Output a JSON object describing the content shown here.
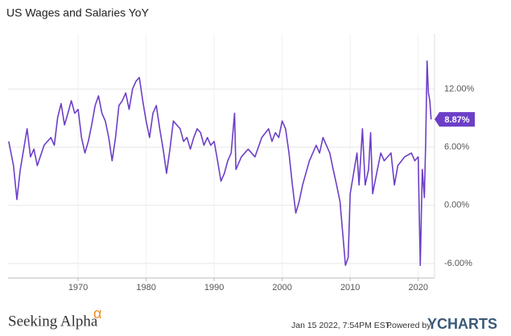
{
  "chart_data": {
    "type": "line",
    "title": "US Wages and Salaries YoY",
    "x": [
      1959.8,
      1960.5,
      1961,
      1961.5,
      1962,
      1962.5,
      1963,
      1963.5,
      1964,
      1965,
      1966,
      1966.5,
      1967,
      1967.5,
      1968,
      1968.5,
      1969,
      1969.5,
      1970,
      1970.5,
      1971,
      1971.5,
      1972,
      1972.5,
      1973,
      1973.5,
      1974,
      1974.5,
      1975,
      1975.5,
      1976,
      1976.5,
      1977,
      1977.5,
      1978,
      1978.5,
      1979,
      1979.5,
      1980,
      1980.5,
      1981,
      1981.5,
      1982,
      1982.5,
      1983,
      1983.5,
      1984,
      1984.5,
      1985,
      1985.5,
      1986,
      1986.5,
      1987,
      1987.5,
      1988,
      1988.5,
      1989,
      1989.5,
      1990,
      1990.5,
      1991,
      1991.5,
      1992,
      1992.5,
      1993,
      1993.2,
      1994,
      1995,
      1996,
      1997,
      1998,
      1998.5,
      1999,
      1999.5,
      2000,
      2000.5,
      2001,
      2001.5,
      2002,
      2002.5,
      2003,
      2004,
      2005,
      2005.5,
      2006,
      2006.5,
      2007,
      2007.5,
      2008,
      2008.5,
      2009,
      2009.3,
      2009.7,
      2010,
      2010.5,
      2011,
      2011.3,
      2011.8,
      2012.2,
      2012.7,
      2013,
      2013.3,
      2014,
      2014.5,
      2015,
      2016,
      2016.5,
      2017,
      2018,
      2019,
      2019.5,
      2020,
      2020.3,
      2020.6,
      2020.9,
      2021.1,
      2021.3,
      2021.5,
      2021.7,
      2021.9
    ],
    "series": [
      {
        "name": "US Wages and Salaries YoY",
        "color": "#6c3fc7",
        "values": [
          6.6,
          4.1,
          0.6,
          3.7,
          5.8,
          7.9,
          5.0,
          5.8,
          4.1,
          6.2,
          7.0,
          6.2,
          9.1,
          10.5,
          8.3,
          9.5,
          10.8,
          9.5,
          9.9,
          7.0,
          5.4,
          6.6,
          8.3,
          10.3,
          11.3,
          9.5,
          8.7,
          7.0,
          4.6,
          7.0,
          10.3,
          10.8,
          11.6,
          9.9,
          12.0,
          12.8,
          13.2,
          10.8,
          8.7,
          7.0,
          9.5,
          10.3,
          7.9,
          5.8,
          3.3,
          5.8,
          8.7,
          8.3,
          7.9,
          6.6,
          7.0,
          5.8,
          7.0,
          7.9,
          7.5,
          6.2,
          7.0,
          6.2,
          6.6,
          4.6,
          2.5,
          3.3,
          4.6,
          5.4,
          9.5,
          3.7,
          5.0,
          5.8,
          5.0,
          7.0,
          7.9,
          6.6,
          7.5,
          7.0,
          8.7,
          7.9,
          5.4,
          2.1,
          -0.8,
          0.4,
          2.1,
          4.6,
          6.2,
          5.4,
          7.0,
          6.2,
          5.4,
          3.7,
          2.1,
          0.4,
          -3.7,
          -6.2,
          -5.4,
          1.2,
          3.3,
          5.4,
          2.1,
          7.9,
          2.1,
          3.7,
          7.5,
          1.2,
          3.7,
          5.4,
          4.6,
          5.4,
          2.1,
          4.1,
          5.0,
          5.4,
          4.6,
          5.0,
          -6.2,
          3.7,
          0.8,
          6.6,
          14.9,
          11.6,
          10.8,
          8.87
        ]
      }
    ],
    "annotation": {
      "value": 8.87,
      "label": "8.87%"
    },
    "xlim": [
      1959.7,
      2022.4
    ],
    "xticks": [
      1970,
      1980,
      1990,
      2000,
      2010,
      2020
    ],
    "ylim": [
      -7.5,
      17.7
    ],
    "yticks": [
      {
        "value": -6,
        "label": "-6.00%"
      },
      {
        "value": 0,
        "label": "0.00%"
      },
      {
        "value": 6,
        "label": "6.00%"
      },
      {
        "value": 12,
        "label": "12.00%"
      }
    ],
    "grid": true
  },
  "footer": {
    "brand": "Seeking Alpha",
    "brand_symbol": "α",
    "timestamp": "Jan 15 2022, 7:54PM EST.",
    "powered": "Powered by",
    "provider": "YCHARTS"
  }
}
